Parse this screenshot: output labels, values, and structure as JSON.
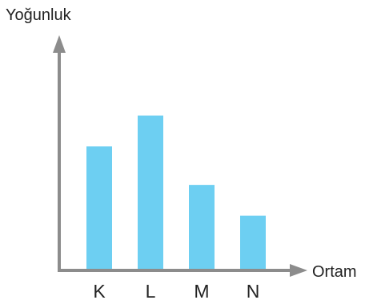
{
  "chart_data": {
    "type": "bar",
    "categories": [
      "K",
      "L",
      "M",
      "N"
    ],
    "values": [
      4,
      5,
      2.75,
      1.75
    ],
    "ylim": [
      0,
      7
    ],
    "xlabel": "Ortam",
    "ylabel": "Yoğunluk",
    "title": "",
    "grid": false,
    "legend": "none",
    "bar_color": "#6dcff2",
    "axis_color": "#8c8c8c",
    "axis_ticks_numeric": false
  }
}
